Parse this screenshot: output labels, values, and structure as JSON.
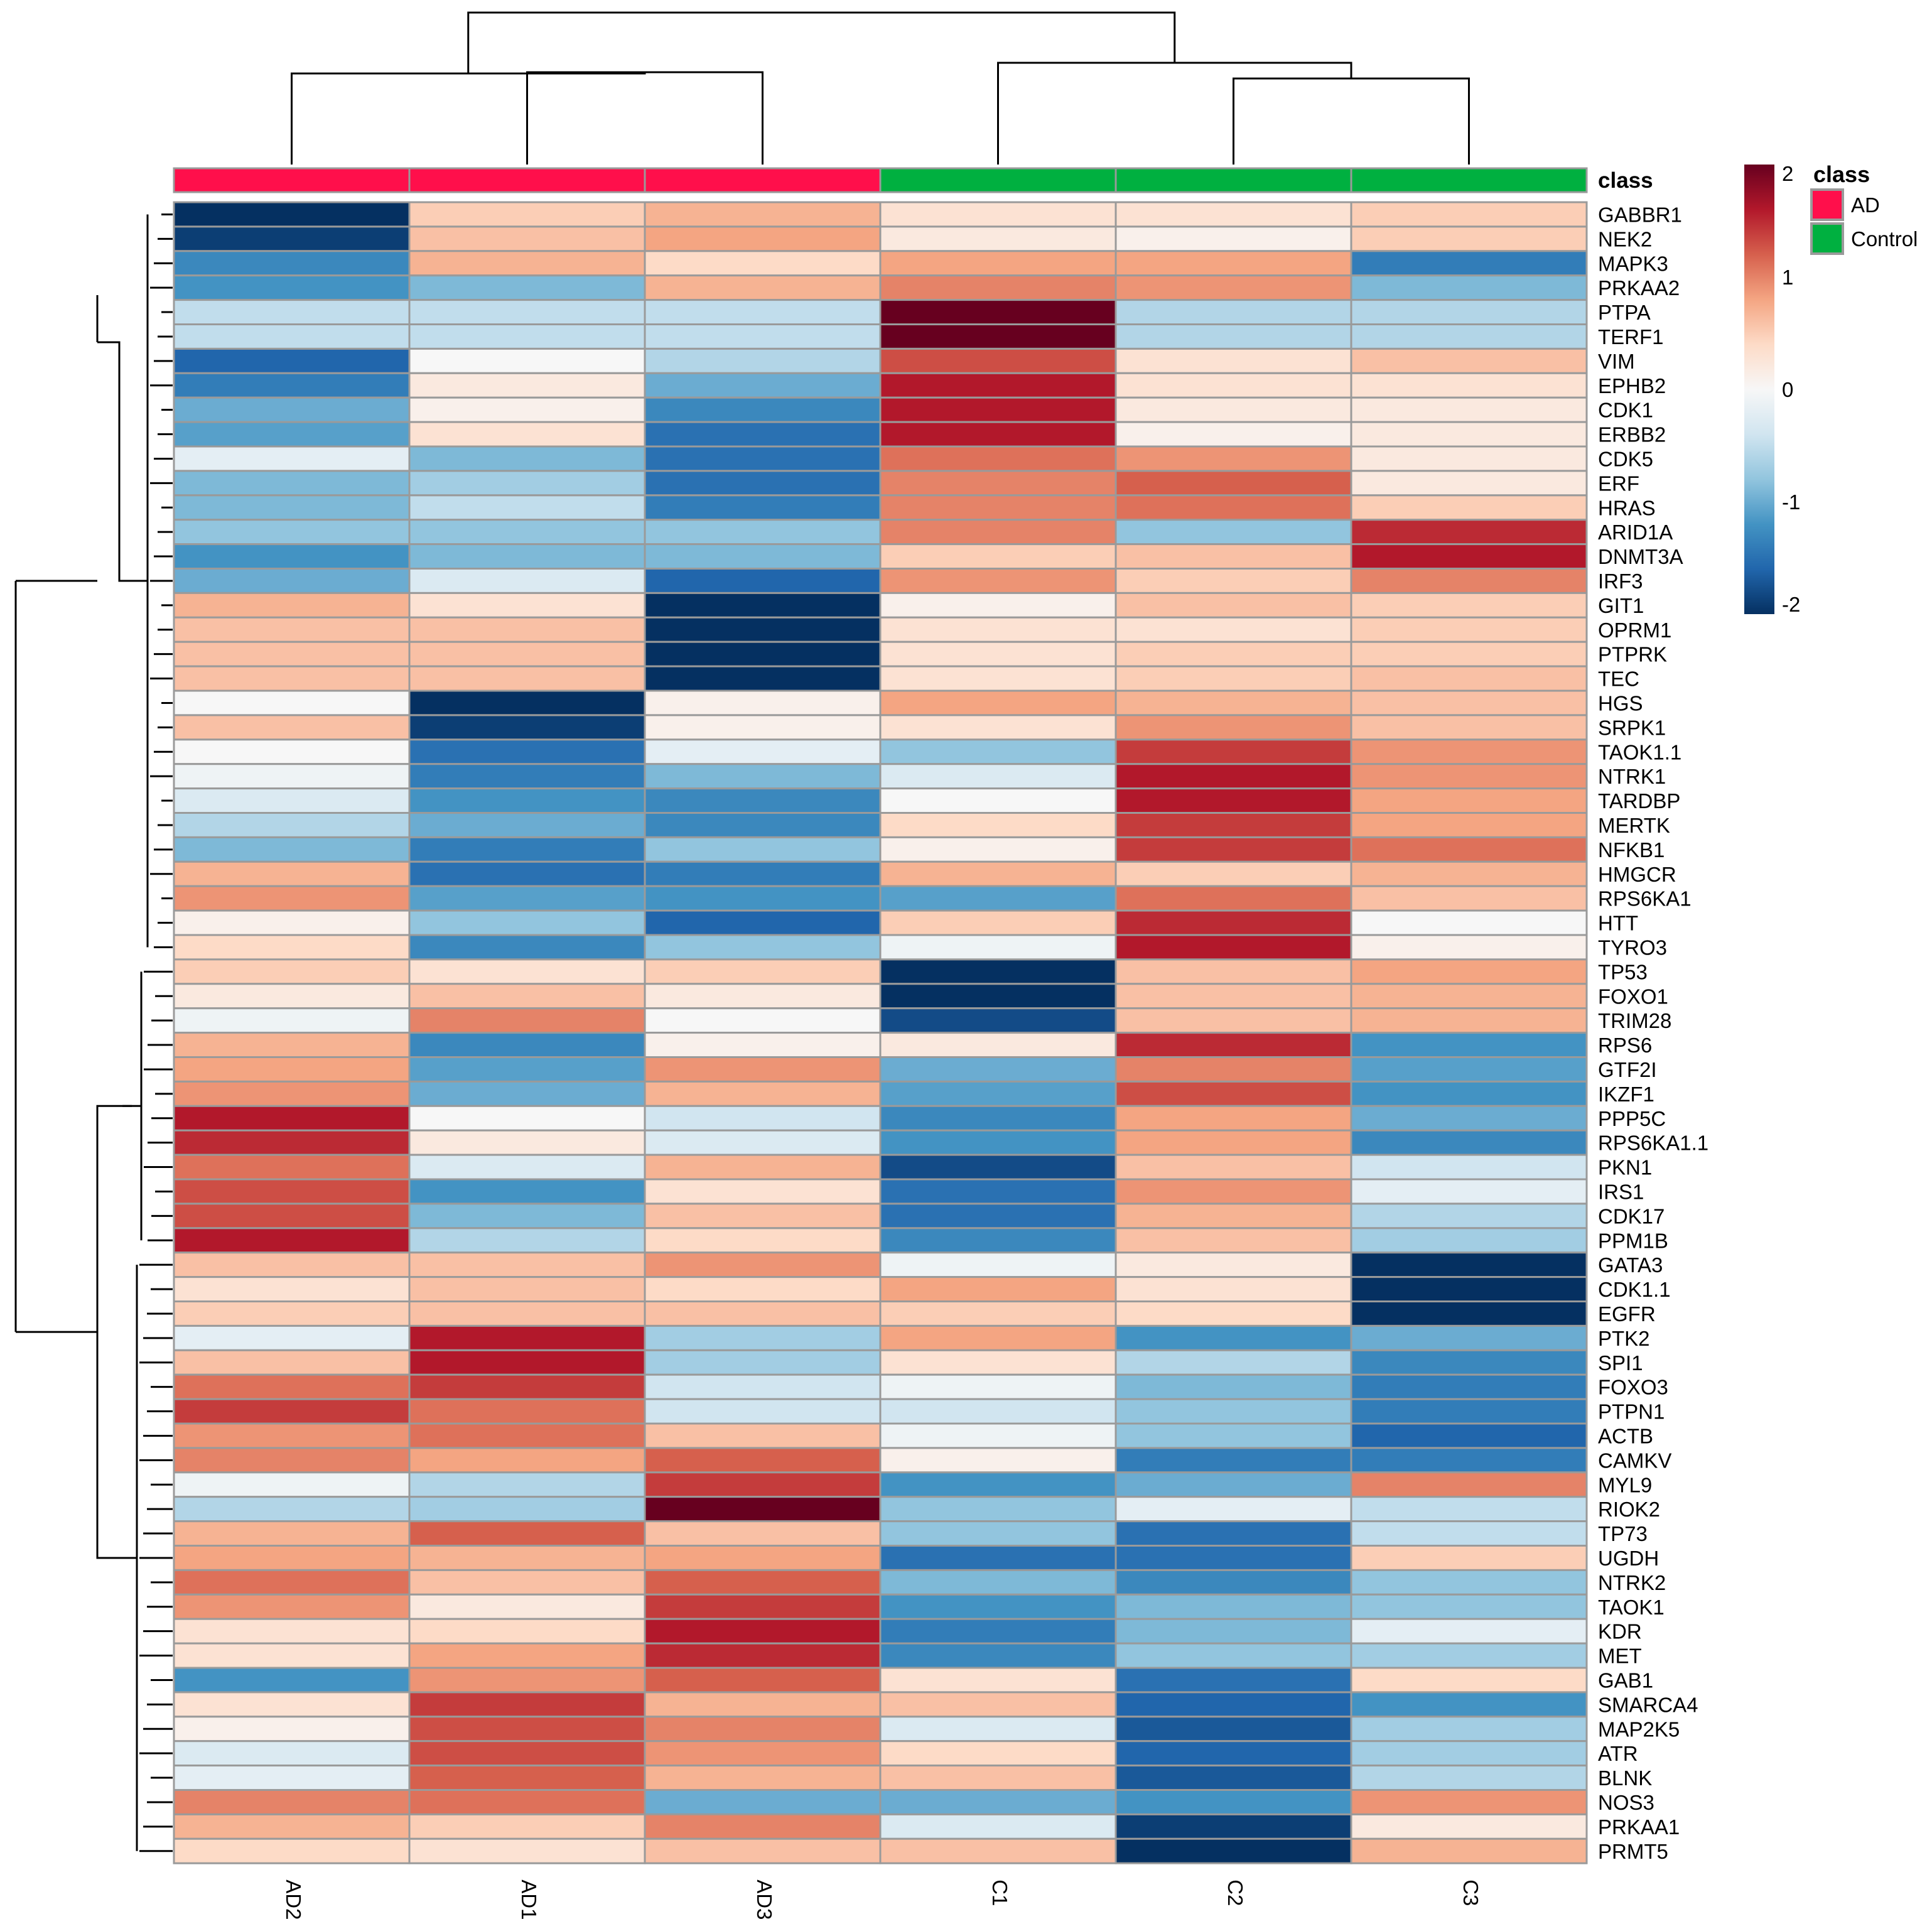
{
  "chart_data": {
    "type": "heatmap",
    "title": "",
    "columns": [
      "AD2",
      "AD1",
      "AD3",
      "C1",
      "C2",
      "C3"
    ],
    "column_class": [
      "AD",
      "AD",
      "AD",
      "Control",
      "Control",
      "Control"
    ],
    "annotation_title": "class",
    "row_labels": [
      "GABBR1",
      "NEK2",
      "MAPK3",
      "PRKAA2",
      "PTPA",
      "TERF1",
      "VIM",
      "EPHB2",
      "CDK1",
      "ERBB2",
      "CDK5",
      "ERF",
      "HRAS",
      "ARID1A",
      "DNMT3A",
      "IRF3",
      "GIT1",
      "OPRM1",
      "PTPRK",
      "TEC",
      "HGS",
      "SRPK1",
      "TAOK1.1",
      "NTRK1",
      "TARDBP",
      "MERTK",
      "NFKB1",
      "HMGCR",
      "RPS6KA1",
      "HTT",
      "TYRO3",
      "TP53",
      "FOXO1",
      "TRIM28",
      "RPS6",
      "GTF2I",
      "IKZF1",
      "PPP5C",
      "RPS6KA1.1",
      "PKN1",
      "IRS1",
      "CDK17",
      "PPM1B",
      "GATA3",
      "CDK1.1",
      "EGFR",
      "PTK2",
      "SPI1",
      "FOXO3",
      "PTPN1",
      "ACTB",
      "CAMKV",
      "MYL9",
      "RIOK2",
      "TP73",
      "UGDH",
      "NTRK2",
      "TAOK1",
      "KDR",
      "MET",
      "GAB1",
      "SMARCA4",
      "MAP2K5",
      "ATR",
      "BLNK",
      "NOS3",
      "PRKAA1",
      "PRMT5"
    ],
    "values": [
      [
        -2.0,
        0.5,
        0.7,
        0.3,
        0.3,
        0.5
      ],
      [
        -1.9,
        0.6,
        0.8,
        0.2,
        0.1,
        0.5
      ],
      [
        -1.3,
        0.7,
        0.4,
        0.8,
        0.8,
        -1.4
      ],
      [
        -1.2,
        -0.9,
        0.7,
        1.0,
        0.9,
        -0.9
      ],
      [
        -0.5,
        -0.5,
        -0.5,
        2.0,
        -0.6,
        -0.6
      ],
      [
        -0.5,
        -0.5,
        -0.5,
        2.0,
        -0.6,
        -0.6
      ],
      [
        -1.6,
        0.0,
        -0.6,
        1.3,
        0.3,
        0.6
      ],
      [
        -1.4,
        0.2,
        -1.0,
        1.6,
        0.3,
        0.3
      ],
      [
        -1.0,
        0.1,
        -1.3,
        1.6,
        0.2,
        0.2
      ],
      [
        -1.1,
        0.3,
        -1.5,
        1.6,
        0.1,
        0.2
      ],
      [
        -0.2,
        -0.9,
        -1.5,
        1.1,
        0.9,
        0.2
      ],
      [
        -0.9,
        -0.7,
        -1.5,
        1.0,
        1.2,
        0.2
      ],
      [
        -0.9,
        -0.5,
        -1.4,
        1.0,
        1.1,
        0.5
      ],
      [
        -0.8,
        -0.8,
        -0.8,
        1.0,
        -0.8,
        1.5
      ],
      [
        -1.2,
        -0.9,
        -0.9,
        0.5,
        0.6,
        1.6
      ],
      [
        -1.0,
        -0.3,
        -1.6,
        0.9,
        0.5,
        1.0
      ],
      [
        0.7,
        0.3,
        -2.0,
        0.1,
        0.6,
        0.5
      ],
      [
        0.6,
        0.6,
        -2.0,
        0.3,
        0.3,
        0.5
      ],
      [
        0.6,
        0.6,
        -2.0,
        0.3,
        0.5,
        0.5
      ],
      [
        0.6,
        0.6,
        -2.0,
        0.3,
        0.5,
        0.6
      ],
      [
        0.0,
        -2.0,
        0.1,
        0.8,
        0.7,
        0.6
      ],
      [
        0.6,
        -1.9,
        0.1,
        0.3,
        0.9,
        0.6
      ],
      [
        0.0,
        -1.5,
        -0.2,
        -0.8,
        1.4,
        0.9
      ],
      [
        -0.1,
        -1.4,
        -0.9,
        -0.3,
        1.6,
        0.9
      ],
      [
        -0.3,
        -1.2,
        -1.3,
        0.0,
        1.6,
        0.8
      ],
      [
        -0.6,
        -1.0,
        -1.3,
        0.4,
        1.4,
        0.8
      ],
      [
        -0.9,
        -1.4,
        -0.8,
        0.1,
        1.4,
        1.1
      ],
      [
        0.7,
        -1.5,
        -1.4,
        0.7,
        0.5,
        0.7
      ],
      [
        0.9,
        -1.1,
        -1.2,
        -1.1,
        1.1,
        0.6
      ],
      [
        0.1,
        -0.8,
        -1.6,
        0.5,
        1.5,
        0.0
      ],
      [
        0.4,
        -1.3,
        -0.8,
        -0.1,
        1.6,
        0.1
      ],
      [
        0.5,
        0.3,
        0.5,
        -2.0,
        0.6,
        0.8
      ],
      [
        0.2,
        0.6,
        0.2,
        -2.0,
        0.6,
        0.7
      ],
      [
        -0.1,
        1.0,
        0.0,
        -1.8,
        0.6,
        0.7
      ],
      [
        0.7,
        -1.3,
        0.1,
        0.2,
        1.5,
        -1.2
      ],
      [
        0.8,
        -1.1,
        0.9,
        -1.0,
        1.0,
        -1.1
      ],
      [
        0.9,
        -1.0,
        0.7,
        -1.1,
        1.3,
        -1.2
      ],
      [
        1.6,
        0.0,
        -0.4,
        -1.3,
        0.8,
        -1.0
      ],
      [
        1.5,
        0.2,
        -0.3,
        -1.2,
        0.8,
        -1.3
      ],
      [
        1.1,
        -0.3,
        0.7,
        -1.8,
        0.6,
        -0.4
      ],
      [
        1.3,
        -1.2,
        0.3,
        -1.5,
        0.9,
        -0.2
      ],
      [
        1.3,
        -0.9,
        0.6,
        -1.5,
        0.7,
        -0.6
      ],
      [
        1.6,
        -0.6,
        0.4,
        -1.3,
        0.6,
        -0.7
      ],
      [
        0.6,
        0.6,
        0.9,
        -0.1,
        0.2,
        -2.0
      ],
      [
        0.3,
        0.6,
        0.4,
        0.8,
        0.3,
        -2.0
      ],
      [
        0.5,
        0.6,
        0.6,
        0.5,
        0.4,
        -2.0
      ],
      [
        -0.2,
        1.6,
        -0.7,
        0.8,
        -1.2,
        -1.0
      ],
      [
        0.6,
        1.6,
        -0.7,
        0.3,
        -0.6,
        -1.3
      ],
      [
        1.1,
        1.4,
        -0.4,
        -0.1,
        -0.9,
        -1.4
      ],
      [
        1.4,
        1.1,
        -0.4,
        -0.4,
        -0.8,
        -1.4
      ],
      [
        0.9,
        1.1,
        0.6,
        -0.1,
        -0.8,
        -1.6
      ],
      [
        1.0,
        0.8,
        1.2,
        0.1,
        -1.4,
        -1.4
      ],
      [
        -0.1,
        -0.6,
        1.4,
        -1.2,
        -1.0,
        1.0
      ],
      [
        -0.6,
        -0.7,
        2.0,
        -0.8,
        -0.2,
        -0.5
      ],
      [
        0.7,
        1.2,
        0.6,
        -0.8,
        -1.5,
        -0.5
      ],
      [
        0.8,
        0.7,
        0.8,
        -1.5,
        -1.5,
        0.5
      ],
      [
        1.1,
        0.6,
        1.2,
        -0.9,
        -1.3,
        -0.8
      ],
      [
        0.9,
        0.2,
        1.4,
        -1.2,
        -0.9,
        -0.8
      ],
      [
        0.3,
        0.4,
        1.6,
        -1.4,
        -0.9,
        -0.2
      ],
      [
        0.3,
        0.8,
        1.5,
        -1.3,
        -0.8,
        -0.7
      ],
      [
        -1.2,
        0.9,
        1.2,
        0.3,
        -1.5,
        0.4
      ],
      [
        0.3,
        1.4,
        0.7,
        0.6,
        -1.6,
        -1.2
      ],
      [
        0.1,
        1.3,
        1.0,
        -0.3,
        -1.7,
        -0.7
      ],
      [
        -0.3,
        1.3,
        0.9,
        0.4,
        -1.6,
        -0.7
      ],
      [
        -0.2,
        1.2,
        0.7,
        0.6,
        -1.7,
        -0.6
      ],
      [
        1.0,
        1.1,
        -1.0,
        -1.0,
        -1.2,
        0.9
      ],
      [
        0.7,
        0.5,
        1.0,
        -0.3,
        -1.9,
        0.2
      ],
      [
        0.4,
        0.3,
        0.6,
        0.6,
        -2.0,
        0.7
      ]
    ],
    "col_tree": [
      [
        0,
        1,
        2,
        3,
        4,
        5
      ],
      [
        [
          0
        ],
        [
          [
            1
          ],
          [
            2
          ]
        ]
      ],
      [
        [
          3
        ],
        [
          [
            4
          ],
          [
            5
          ]
        ]
      ]
    ],
    "colorbar": {
      "range": [
        -2,
        2
      ],
      "ticks": [
        "2",
        "1",
        "0",
        "-1",
        "-2"
      ],
      "tick_values": [
        2,
        1,
        0,
        -1,
        -2
      ],
      "colors": [
        "#053061",
        "#2166ac",
        "#4393c3",
        "#92c5de",
        "#d1e5f0",
        "#f7f7f7",
        "#fddbc7",
        "#f4a582",
        "#d6604d",
        "#b2182b",
        "#67001f"
      ]
    },
    "legend": {
      "title": "class",
      "items": [
        {
          "label": "AD",
          "color": "#ff0f4b"
        },
        {
          "label": "Control",
          "color": "#00b040"
        }
      ]
    }
  }
}
